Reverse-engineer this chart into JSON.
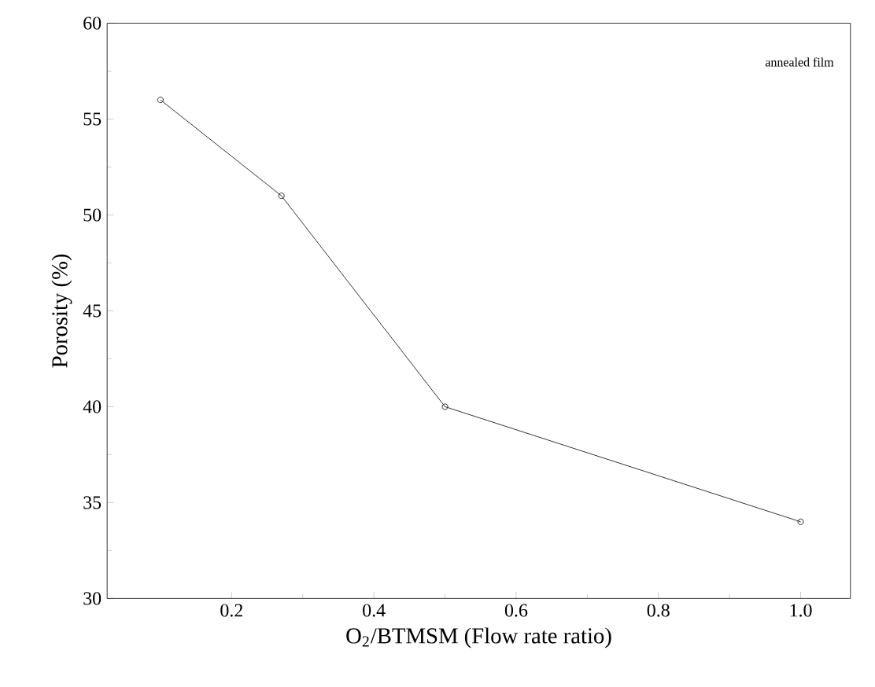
{
  "chart_data": {
    "type": "line",
    "xlabel": "O$_{2}$/BTMSM (Flow rate ratio)",
    "ylabel": "Porosity (%)",
    "annotations": [
      "annealed film"
    ],
    "x": [
      0.1,
      0.27,
      0.5,
      1.0
    ],
    "series": [
      {
        "color": "#000000",
        "values": [
          56,
          51,
          40,
          34
        ]
      }
    ],
    "xlim": [
      0.025,
      1.07
    ],
    "ylim": [
      30,
      60
    ],
    "xticks": [
      0.2,
      0.4,
      0.6,
      0.8,
      {
        "value": 1.0,
        "label": "1.0"
      }
    ],
    "yticks": [
      30,
      35,
      40,
      45,
      50,
      55,
      60
    ],
    "grid": false,
    "marker": "circle",
    "line_style": "solid"
  }
}
